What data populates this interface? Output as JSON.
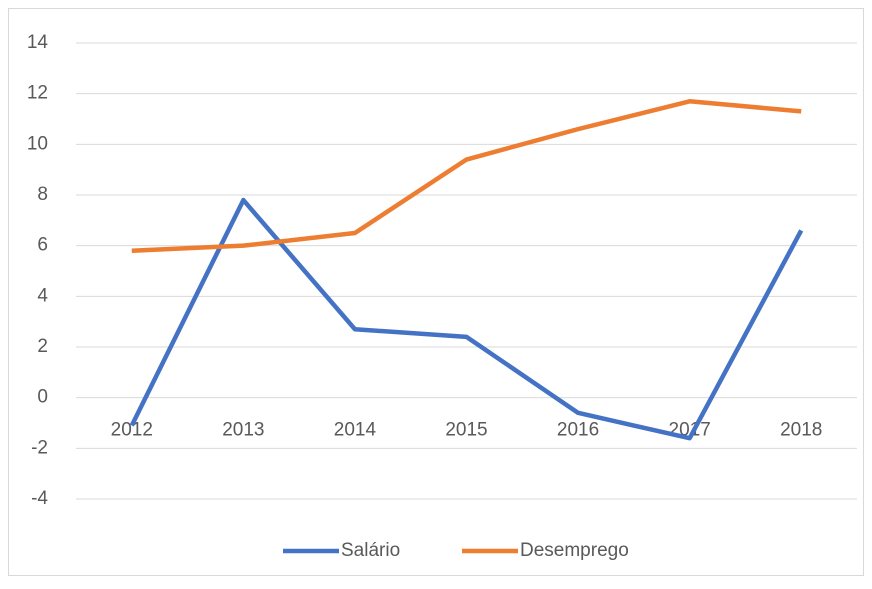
{
  "chart_data": {
    "type": "line",
    "categories": [
      "2012",
      "2013",
      "2014",
      "2015",
      "2016",
      "2017",
      "2018"
    ],
    "series": [
      {
        "name": "Salário",
        "color": "#4472c4",
        "values": [
          -1.1,
          7.8,
          2.7,
          2.4,
          -0.6,
          -1.6,
          6.6
        ]
      },
      {
        "name": "Desemprego",
        "color": "#ed7d31",
        "values": [
          5.8,
          6.0,
          6.5,
          9.4,
          10.6,
          11.7,
          11.3
        ]
      }
    ],
    "ylim": [
      -4,
      14
    ],
    "yticks": [
      -4,
      -2,
      0,
      2,
      4,
      6,
      8,
      10,
      12,
      14
    ],
    "grid": true,
    "legend": "bottom"
  }
}
